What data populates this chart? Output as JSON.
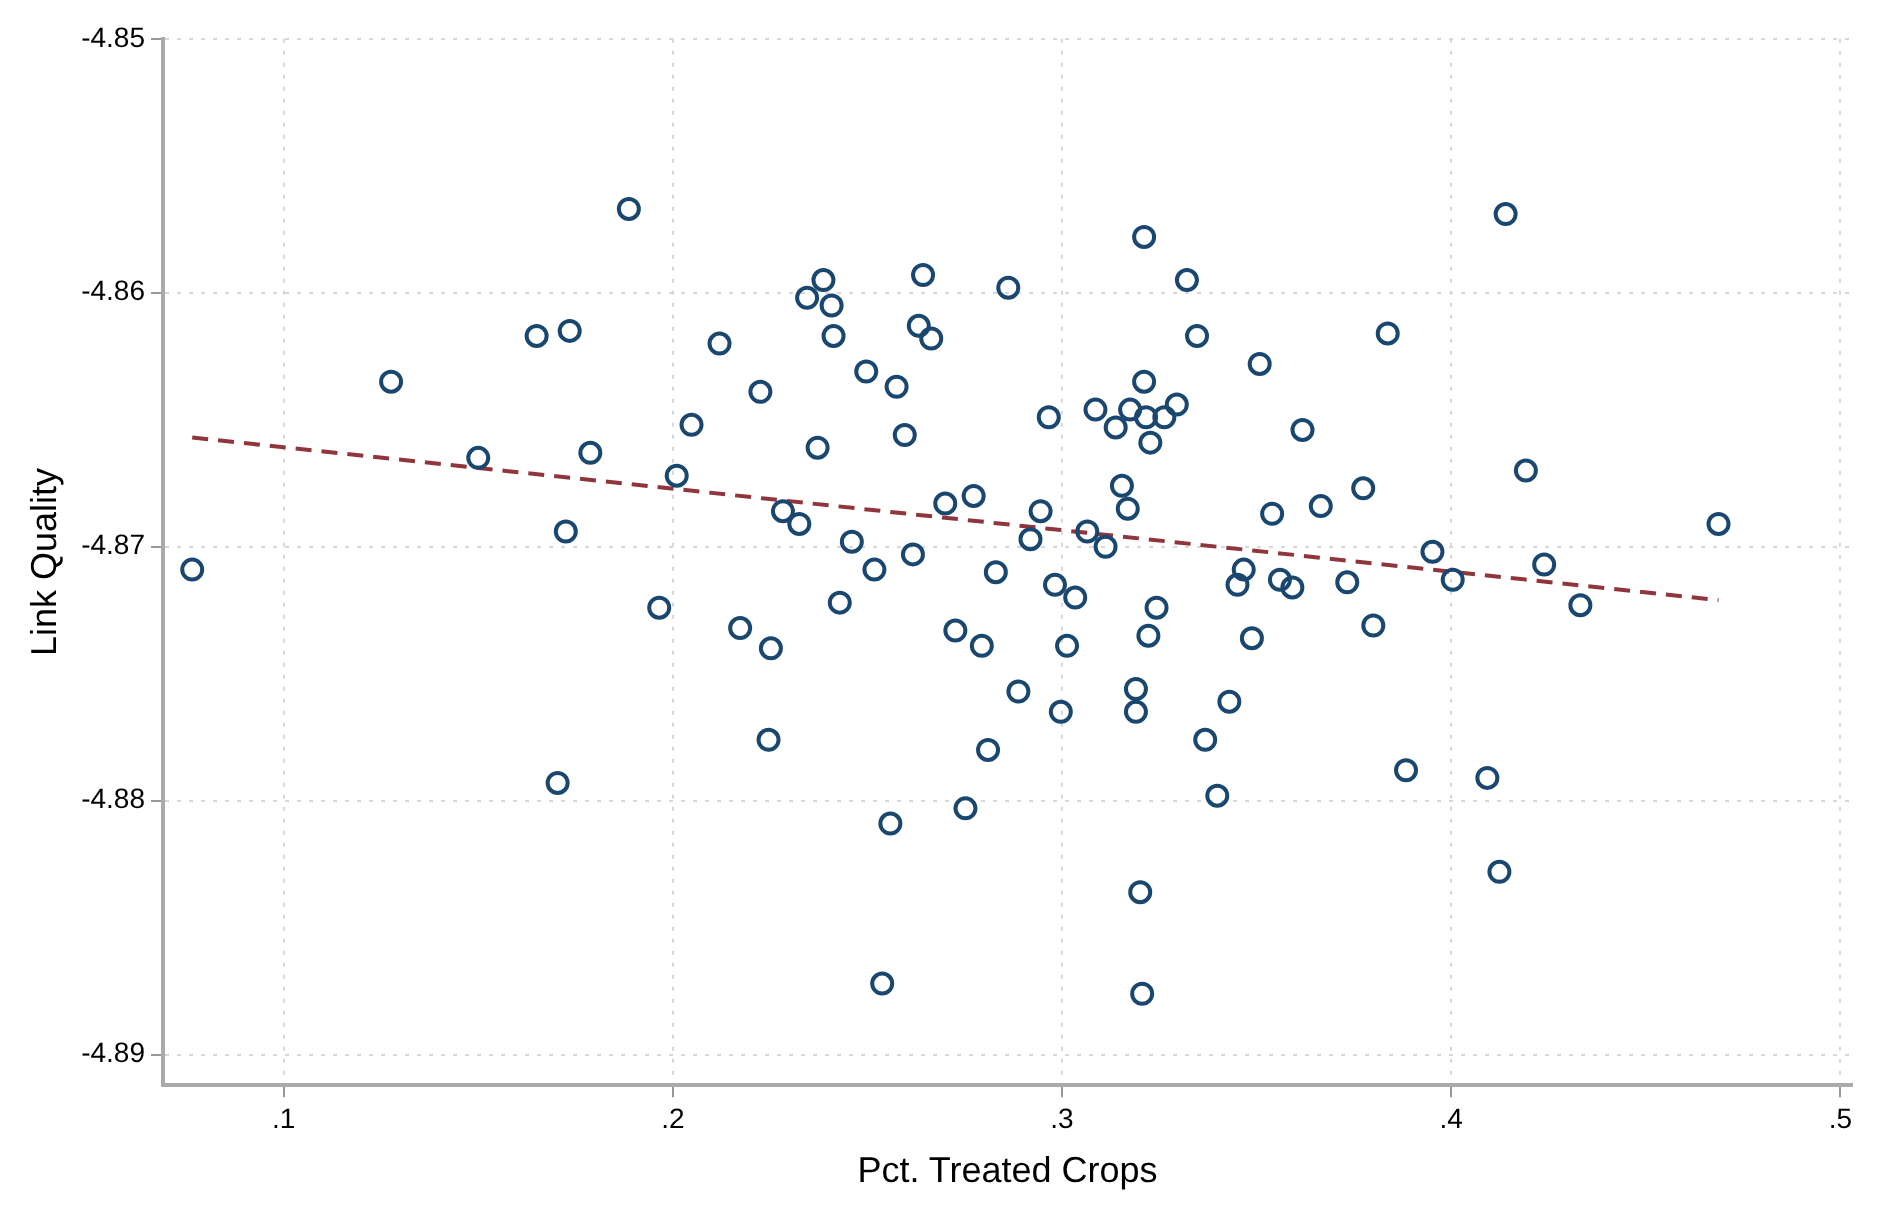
{
  "chart_data": {
    "type": "scatter",
    "xlabel": "Pct. Treated Crops",
    "ylabel": "Link Quality",
    "xlim": [
      0.069,
      0.503
    ],
    "ylim": [
      -4.8912,
      -4.85
    ],
    "xticks": [
      {
        "value": 0.1,
        "label": ".1"
      },
      {
        "value": 0.2,
        "label": ".2"
      },
      {
        "value": 0.3,
        "label": ".3"
      },
      {
        "value": 0.4,
        "label": ".4"
      },
      {
        "value": 0.5,
        "label": ".5"
      }
    ],
    "yticks": [
      -4.89,
      -4.88,
      -4.87,
      -4.86,
      -4.85
    ],
    "grid": true,
    "legend": false,
    "series": [
      {
        "color": "#1a476f",
        "marker": "circle",
        "x": [
          0.0765,
          0.1276,
          0.15,
          0.165,
          0.1735,
          0.1887,
          0.1788,
          0.1725,
          0.1704,
          0.1965,
          0.201,
          0.2048,
          0.212,
          0.2173,
          0.2225,
          0.2246,
          0.2252,
          0.2283,
          0.2325,
          0.2345,
          0.2387,
          0.2408,
          0.2413,
          0.2372,
          0.2429,
          0.246,
          0.2497,
          0.2518,
          0.2538,
          0.2559,
          0.2575,
          0.2596,
          0.2617,
          0.2632,
          0.2643,
          0.2664,
          0.27,
          0.2726,
          0.2752,
          0.2773,
          0.2794,
          0.281,
          0.283,
          0.2862,
          0.2888,
          0.2919,
          0.2945,
          0.2966,
          0.2982,
          0.2997,
          0.3013,
          0.3034,
          0.3065,
          0.3086,
          0.3112,
          0.3138,
          0.3154,
          0.3169,
          0.3175,
          0.319,
          0.319,
          0.3201,
          0.3206,
          0.3211,
          0.3211,
          0.3216,
          0.3227,
          0.3222,
          0.3243,
          0.3263,
          0.3295,
          0.3321,
          0.3347,
          0.3368,
          0.3399,
          0.343,
          0.3451,
          0.3467,
          0.3488,
          0.3508,
          0.354,
          0.356,
          0.3592,
          0.3618,
          0.3665,
          0.3733,
          0.3774,
          0.38,
          0.3837,
          0.3884,
          0.3952,
          0.4004,
          0.4093,
          0.4124,
          0.414,
          0.4192,
          0.4239,
          0.4332,
          0.4687
        ],
        "values": [
          -4.8709,
          -4.8635,
          -4.8665,
          -4.8617,
          -4.8615,
          -4.8567,
          -4.8663,
          -4.8694,
          -4.8793,
          -4.8724,
          -4.8672,
          -4.8652,
          -4.862,
          -4.8732,
          -4.8639,
          -4.8776,
          -4.874,
          -4.8686,
          -4.8691,
          -4.8602,
          -4.8595,
          -4.8605,
          -4.8617,
          -4.8661,
          -4.8722,
          -4.8698,
          -4.8631,
          -4.8709,
          -4.8872,
          -4.8809,
          -4.8637,
          -4.8656,
          -4.8703,
          -4.8613,
          -4.8593,
          -4.8618,
          -4.8683,
          -4.8733,
          -4.8803,
          -4.868,
          -4.8739,
          -4.878,
          -4.871,
          -4.8598,
          -4.8757,
          -4.8697,
          -4.8686,
          -4.8649,
          -4.8715,
          -4.8765,
          -4.8739,
          -4.872,
          -4.8694,
          -4.8646,
          -4.87,
          -4.8653,
          -4.8676,
          -4.8685,
          -4.8646,
          -4.8756,
          -4.8765,
          -4.8836,
          -4.8876,
          -4.8635,
          -4.8578,
          -4.8649,
          -4.8659,
          -4.8735,
          -4.8724,
          -4.8649,
          -4.8644,
          -4.8595,
          -4.8617,
          -4.8776,
          -4.8798,
          -4.8761,
          -4.8715,
          -4.8709,
          -4.8736,
          -4.8628,
          -4.8687,
          -4.8713,
          -4.8716,
          -4.8654,
          -4.8684,
          -4.8714,
          -4.8677,
          -4.8731,
          -4.8616,
          -4.8788,
          -4.8702,
          -4.8713,
          -4.8791,
          -4.8828,
          -4.8569,
          -4.867,
          -4.8707,
          -4.8723,
          -4.8691
        ]
      },
      {
        "type": "line",
        "color": "#90353b",
        "line_style": "dashed",
        "marker": "none",
        "x": [
          0.0765,
          0.4687
        ],
        "values": [
          -4.8657,
          -4.8721
        ]
      }
    ]
  }
}
